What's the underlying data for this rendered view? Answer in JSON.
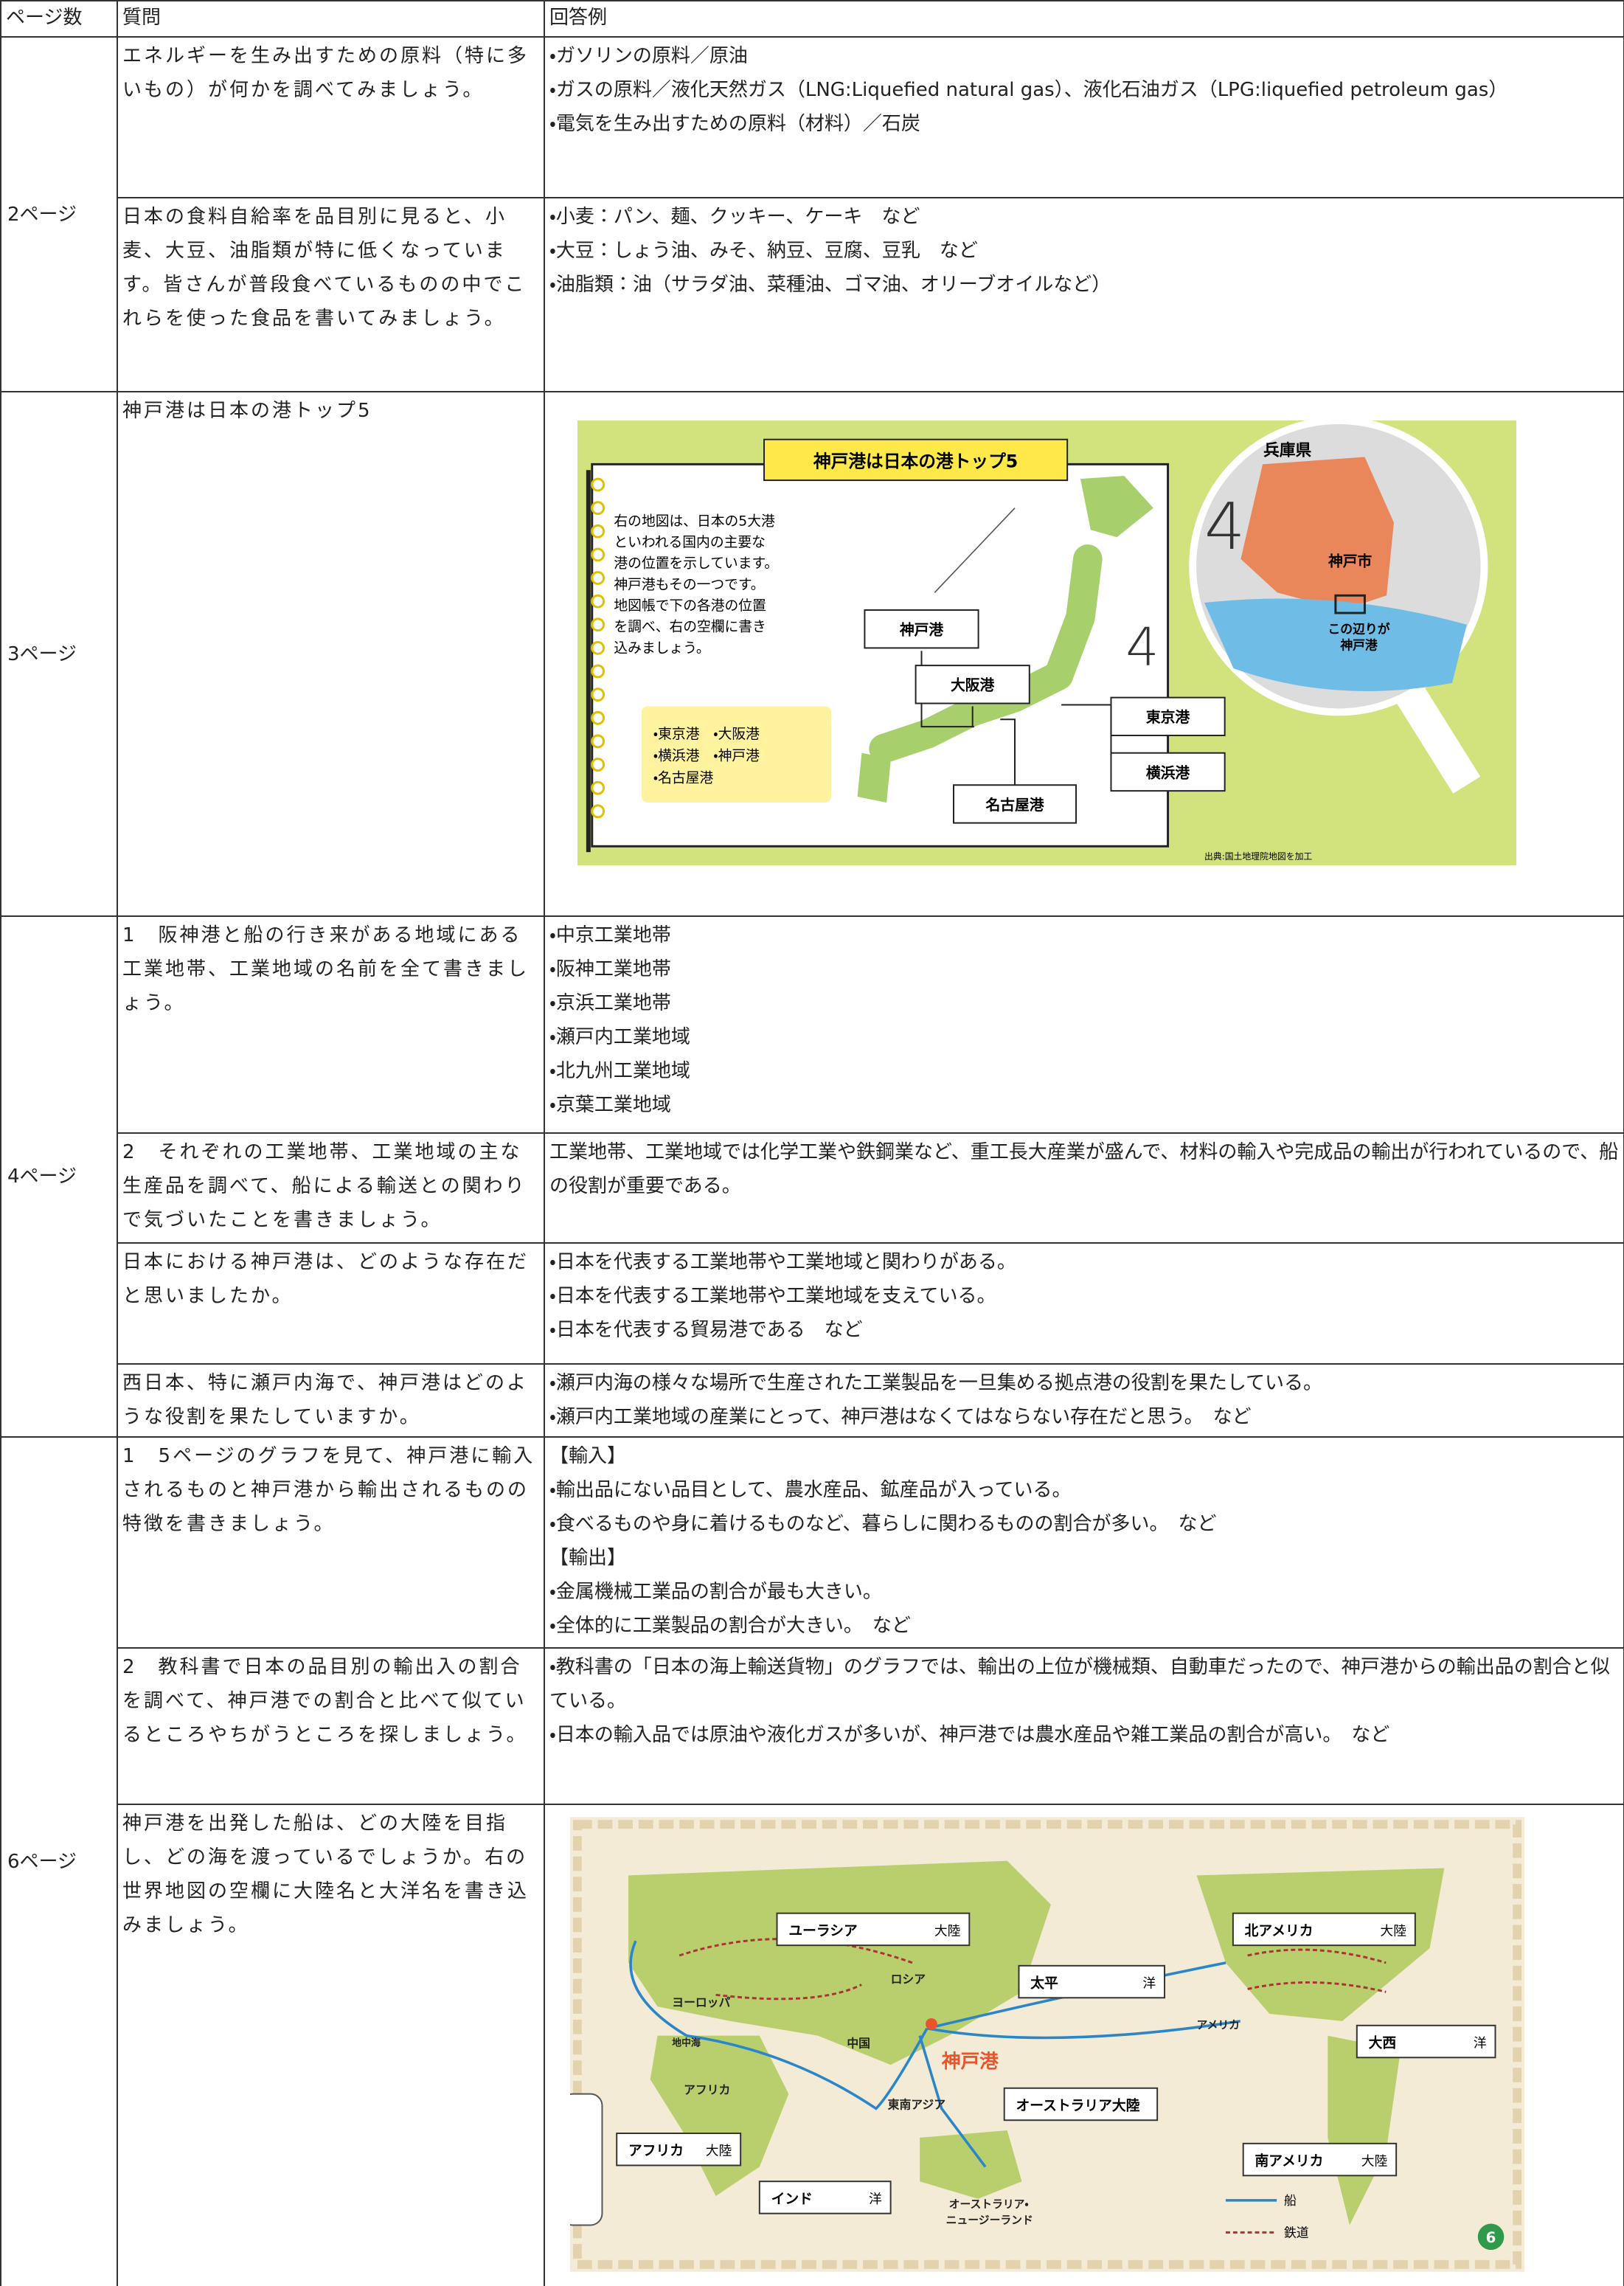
{
  "header": [
    "ページ数",
    "質問",
    "回答例"
  ],
  "sections": [
    {
      "page": "2ページ",
      "rows": [
        {
          "question": "エネルギーを生み出すための原料（特に多いもの）が何かを調べてみましょう。",
          "answer": [
            "・ガソリンの原料／原油",
            "・ガスの原料／液化天然ガス（LNG:Liquefied natural gas）、液化石油ガス（LPG:liquefied petroleum gas）",
            "・電気を生み出すための原料（材料）／石炭"
          ]
        },
        {
          "question": "日本の食料自給率を品目別に見ると、小麦、大豆、油脂類が特に低くなっています。皆さんが普段食べているものの中でこれらを使った食品を書いてみましょう。",
          "answer": [
            "・小麦：パン、麺、クッキー、ケーキ　など",
            "・大豆：しょう油、みそ、納豆、豆腐、豆乳　など",
            "・油脂類：油（サラダ油、菜種油、ゴマ油、オリーブオイルなど）"
          ]
        }
      ]
    },
    {
      "page": "3ページ",
      "rows": [
        {
          "question": "神戸港は日本の港トップ5",
          "figure": {
            "title": "神戸港は日本の港トップ5",
            "text": [
              "右の地図は、日本の5大港",
              "といわれる国内の主要な",
              "港の位置を示しています。",
              "神戸港もその一つです。",
              "地図帳で下の各港の位置",
              "を調べ、右の空欄に書き",
              "込みましょう。"
            ],
            "list": [
              "・東京港　・大阪港",
              "・横浜港　・神戸港",
              "・名古屋港"
            ],
            "ports": [
              "神戸港",
              "大阪港",
              "東京港",
              "横浜港",
              "名古屋港"
            ],
            "marks": [
              "4",
              "4"
            ],
            "zoom": [
              "兵庫県",
              "神戸市",
              "この辺りが",
              "神戸港"
            ],
            "source": "出典:国土地理院地図を加工"
          }
        }
      ]
    },
    {
      "page": "4ページ",
      "rows": [
        {
          "question": "1　阪神港と船の行き来がある地域にある工業地帯、工業地域の名前を全て書きましょう。",
          "answer": [
            "・中京工業地帯",
            "・阪神工業地帯",
            "・京浜工業地帯",
            "・瀬戸内工業地域",
            "・北九州工業地域",
            "・京葉工業地域"
          ]
        },
        {
          "question": "2　それぞれの工業地帯、工業地域の主な生産品を調べて、船による輸送との関わりで気づいたことを書きましょう。",
          "answer": [
            "工業地帯、工業地域では化学工業や鉄鋼業など、重工長大産業が盛んで、材料の輸入や完成品の輸出が行われているので、船の役割が重要である。"
          ]
        },
        {
          "question": "日本における神戸港は、どのような存在だと思いましたか。",
          "answer": [
            "・日本を代表する工業地帯や工業地域と関わりがある。",
            "・日本を代表する工業地帯や工業地域を支えている。",
            "・日本を代表する貿易港である　など"
          ]
        },
        {
          "question": "西日本、特に瀬戸内海で、神戸港はどのような役割を果たしていますか。",
          "answer": [
            "・瀬戸内海の様々な場所で生産された工業製品を一旦集める拠点港の役割を果たしている。",
            "・瀬戸内工業地域の産業にとって、神戸港はなくてはならない存在だと思う。　など"
          ]
        }
      ]
    },
    {
      "page": "6ページ",
      "rows": [
        {
          "question": "1　5ページのグラフを見て、神戸港に輸入されるものと神戸港から輸出されるものの特徴を書きましょう。",
          "answer": [
            "【輸入】",
            "・輸出品にない品目として、農水産品、鉱産品が入っている。",
            "・食べるものや身に着けるものなど、暮らしに関わるものの割合が多い。　など",
            "【輸出】",
            "・金属機械工業品の割合が最も大きい。",
            "・全体的に工業製品の割合が大きい。　など"
          ]
        },
        {
          "question": "2　教科書で日本の品目別の輸出入の割合を調べて、神戸港での割合と比べて似ているところやちがうところを探しましょう。",
          "answer": [
            "・教科書の「日本の海上輸送貨物」のグラフでは、輸出の上位が機械類、自動車だったので、神戸港からの輸出品の割合と似ている。",
            "・日本の輸入品では原油や液化ガスが多いが、神戸港では農水産品や雑工業品の割合が高い。　など"
          ]
        },
        {
          "question": "神戸港を出発した船は、どの大陸を目指し、どの海を渡っているでしょうか。右の世界地図の空欄に大陸名と大洋名を書き込みましょう。",
          "figure": {
            "boxes": [
              [
                "ユーラシア",
                "大陸"
              ],
              [
                "北アメリカ",
                "大陸"
              ],
              [
                "太平",
                "洋"
              ],
              [
                "大西",
                "洋"
              ],
              [
                "オーストラリア大陸",
                ""
              ],
              [
                "アフリカ",
                "大陸"
              ],
              [
                "南アメリカ",
                "大陸"
              ],
              [
                "インド",
                "洋"
              ]
            ],
            "labels": [
              "ロシア",
              "ヨーロッパ",
              "地中海",
              "中国",
              "アメリカ",
              "神戸港",
              "アフリカ",
              "東南アジア",
              "オーストラリア・",
              "ニュージーランド"
            ],
            "legend": [
              "船",
              "鉄道"
            ],
            "page_no": "6"
          }
        }
      ]
    }
  ]
}
